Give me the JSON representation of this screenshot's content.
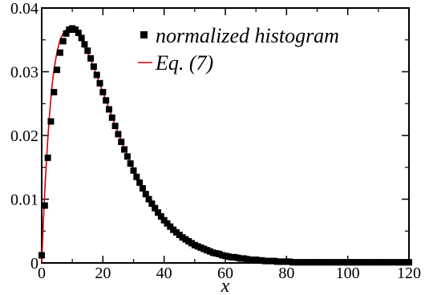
{
  "chart_data": {
    "type": "scatter",
    "title": "",
    "xlabel": "x",
    "ylabel": "",
    "xlim": [
      0,
      120
    ],
    "ylim": [
      0,
      0.04
    ],
    "grid": false,
    "legend_position": "top-right",
    "x_ticks": [
      0,
      20,
      40,
      60,
      80,
      100,
      120
    ],
    "x_tick_labels": [
      "0",
      "20",
      "40",
      "60",
      "80",
      "100",
      "120"
    ],
    "y_ticks": [
      0,
      0.01,
      0.02,
      0.03,
      0.04
    ],
    "y_tick_labels": [
      "0",
      "0.01",
      "0.02",
      "0.03",
      "0.04"
    ],
    "series": [
      {
        "name": "normalized histogram",
        "kind": "markers",
        "marker": "square",
        "color": "#000000",
        "x": [
          0,
          1,
          2,
          3,
          4,
          5,
          6,
          7,
          8,
          9,
          10,
          11,
          12,
          13,
          14,
          15,
          16,
          17,
          18,
          19,
          20,
          21,
          22,
          23,
          24,
          25,
          26,
          27,
          28,
          29,
          30,
          31,
          32,
          33,
          34,
          35,
          36,
          37,
          38,
          39,
          40,
          41,
          42,
          43,
          44,
          45,
          46,
          47,
          48,
          49,
          50,
          51,
          52,
          53,
          54,
          55,
          56,
          57,
          58,
          59,
          60,
          61,
          62,
          63,
          64,
          65,
          66,
          67,
          68,
          69,
          70,
          71,
          72,
          73,
          74,
          75,
          76,
          77,
          78,
          79,
          80,
          81,
          82,
          83,
          84,
          85,
          86,
          87,
          88,
          89,
          90,
          91,
          92,
          93,
          94,
          95,
          96,
          97,
          98,
          99,
          100,
          101,
          102,
          103,
          104,
          105,
          106,
          107,
          108,
          109,
          110,
          111,
          112,
          113,
          114,
          115,
          116,
          117,
          118,
          119,
          120
        ],
        "y": [
          0.0012,
          0.009,
          0.0165,
          0.0222,
          0.0268,
          0.0303,
          0.033,
          0.0348,
          0.036,
          0.0366,
          0.0368,
          0.0366,
          0.0361,
          0.0353,
          0.0343,
          0.0333,
          0.0321,
          0.0308,
          0.0295,
          0.0282,
          0.0268,
          0.0255,
          0.0241,
          0.0228,
          0.0215,
          0.0202,
          0.019,
          0.0178,
          0.0167,
          0.0156,
          0.0145,
          0.0135,
          0.0126,
          0.0117,
          0.0108,
          0.01,
          0.0093,
          0.0086,
          0.0079,
          0.0073,
          0.0067,
          0.0062,
          0.0057,
          0.0052,
          0.0048,
          0.0044,
          0.004,
          0.0037,
          0.0034,
          0.0031,
          0.0028,
          0.0026,
          0.0024,
          0.0022,
          0.002,
          0.0018,
          0.0016,
          0.0015,
          0.0014,
          0.0012,
          0.0011,
          0.001,
          0.0009,
          0.0009,
          0.0008,
          0.0007,
          0.0007,
          0.0006,
          0.0005,
          0.0005,
          0.0005,
          0.0004,
          0.0004,
          0.0003,
          0.0003,
          0.0003,
          0.0003,
          0.0002,
          0.0002,
          0.0002,
          0.0002,
          0.0002,
          0.0001,
          0.0001,
          0.0001,
          0.0001,
          0.0001,
          0.0001,
          0.0001,
          0.0001,
          0.0001,
          0.0001,
          0.0001,
          0.0001,
          0.0001,
          0.0001,
          0.0001,
          0.0001,
          0.0001,
          0.0001,
          0.0001,
          0.0001,
          0.0001,
          0.0001,
          0.0001,
          0.0001,
          0.0001,
          0.0001,
          0.0001,
          0.0001,
          0.0001,
          0.0001,
          0.0001,
          0.0001,
          0.0001,
          0.0001,
          0.0001,
          0.0001,
          0.0001,
          0.0001,
          0.0001
        ]
      },
      {
        "name": "Eq. (7)",
        "kind": "line",
        "color": "#d40000",
        "x": [
          0,
          0.5,
          1,
          1.5,
          2,
          2.5,
          3,
          3.5,
          4,
          5,
          6,
          7,
          8,
          9,
          10,
          11,
          12,
          13,
          14,
          15,
          16,
          18,
          20,
          22,
          24,
          26,
          28,
          30,
          32,
          34,
          36,
          38,
          40,
          42,
          44,
          46,
          48,
          50,
          52,
          54,
          56,
          58,
          60,
          62,
          64,
          66,
          68,
          70,
          72,
          74,
          76,
          78,
          80,
          82,
          84,
          86,
          88,
          90,
          95,
          100,
          105,
          110,
          115,
          120
        ],
        "y": [
          0,
          0.006,
          0.0112,
          0.0155,
          0.0195,
          0.0229,
          0.0258,
          0.0283,
          0.0303,
          0.0331,
          0.035,
          0.036,
          0.0366,
          0.0368,
          0.0367,
          0.0364,
          0.0358,
          0.035,
          0.0341,
          0.033,
          0.0319,
          0.0294,
          0.0268,
          0.0242,
          0.0216,
          0.0192,
          0.0169,
          0.0148,
          0.0129,
          0.0112,
          0.0097,
          0.0083,
          0.0071,
          0.0061,
          0.0052,
          0.0044,
          0.0037,
          0.0031,
          0.0026,
          0.0022,
          0.0019,
          0.0016,
          0.0013,
          0.0011,
          0.0009,
          0.0008,
          0.0007,
          0.0005,
          0.0005,
          0.0004,
          0.0003,
          0.0003,
          0.0002,
          0.0002,
          0.0002,
          0.0001,
          0.0001,
          0.0001,
          0.0001,
          0.0001,
          0,
          0,
          0,
          0
        ]
      }
    ]
  }
}
